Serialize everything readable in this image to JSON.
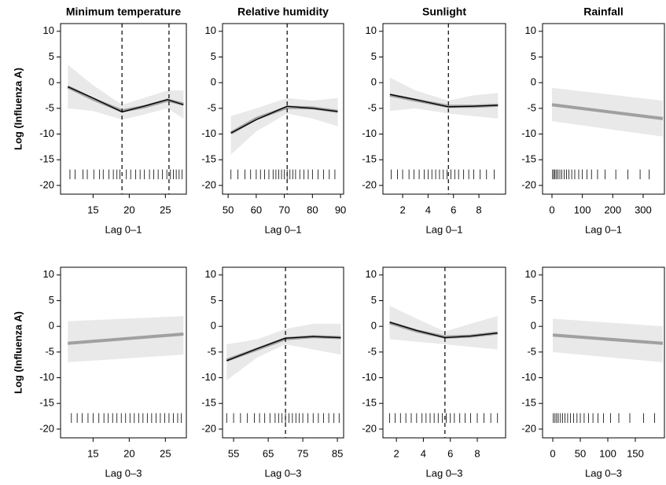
{
  "chart_data": [
    {
      "type": "line",
      "title": "Minimum temperature",
      "xlabel": "Lag 0–1",
      "ylabel": "Log (Influenza A)",
      "xlim": [
        10.5,
        27.9
      ],
      "xticks": [
        15,
        20,
        25
      ],
      "ylim": [
        -21.7,
        11.5
      ],
      "yticks": [
        10,
        5,
        0,
        -5,
        -10,
        -15,
        -20
      ],
      "x": [
        11.5,
        15,
        19,
        22,
        25.3,
        27.5
      ],
      "ci_lower": [
        -5,
        -5.5,
        -7.2,
        -6.2,
        -5,
        -7
      ],
      "ci_upper": [
        3.5,
        -0.5,
        -4.3,
        -3,
        -1.5,
        -1.5
      ],
      "series": [
        {
          "color": "#a0a0a0",
          "values": [
            -0.8,
            -3.2,
            -5.5,
            -4.7,
            -3.4,
            -4.2
          ]
        },
        {
          "color": "#000000",
          "values": [
            -0.8,
            -3,
            -5.7,
            -4.6,
            -3.3,
            -4.3
          ]
        }
      ],
      "cutoffs": [
        19,
        25.5
      ],
      "rug": [
        11.8,
        12.5,
        13.6,
        14.2,
        15.1,
        15.9,
        16.4,
        17.2,
        17.8,
        18.3,
        18.7,
        19.6,
        20.2,
        20.9,
        21.5,
        22.1,
        22.8,
        23.4,
        24.0,
        24.6,
        25.2,
        25.7,
        26.1,
        26.5,
        26.9,
        27.3
      ]
    },
    {
      "type": "line",
      "title": "Relative humidity",
      "xlabel": "Lag 0–1",
      "xlim": [
        48.0,
        91.1
      ],
      "xticks": [
        50,
        60,
        70,
        80,
        90
      ],
      "ylim": [
        -21.7,
        11.5
      ],
      "yticks": [
        10,
        5,
        0,
        -5,
        -10,
        -15,
        -20
      ],
      "x": [
        51,
        60,
        71,
        80,
        89
      ],
      "ci_lower": [
        -14,
        -9.5,
        -6,
        -7,
        -8.5
      ],
      "ci_upper": [
        -6.5,
        -5,
        -3,
        -3.5,
        -3
      ],
      "series": [
        {
          "color": "#a0a0a0",
          "values": [
            -9.8,
            -7.0,
            -4.8,
            -4.9,
            -5.6
          ]
        },
        {
          "color": "#000000",
          "values": [
            -9.8,
            -7.2,
            -4.6,
            -5,
            -5.6
          ]
        }
      ],
      "cutoffs": [
        71
      ],
      "rug": [
        51,
        53.5,
        56,
        58,
        60,
        61.5,
        63,
        64.5,
        66,
        67,
        68,
        69,
        70,
        71,
        72,
        73,
        74,
        75.5,
        77,
        78.5,
        80,
        82,
        84,
        86,
        88
      ]
    },
    {
      "type": "line",
      "title": "Sunlight",
      "xlabel": "Lag 0–1",
      "xlim": [
        0.45,
        10.1
      ],
      "xticks": [
        2,
        4,
        6,
        8
      ],
      "ylim": [
        -21.7,
        11.5
      ],
      "yticks": [
        10,
        5,
        0,
        -5,
        -10,
        -15,
        -20
      ],
      "x": [
        1,
        3,
        5.6,
        7.5,
        9.5
      ],
      "ci_lower": [
        -5.5,
        -5,
        -6,
        -6.5,
        -7
      ],
      "ci_upper": [
        1,
        -1.5,
        -3.5,
        -2.5,
        -2
      ],
      "series": [
        {
          "color": "#a0a0a0",
          "values": [
            -2.4,
            -3.4,
            -4.6,
            -4.6,
            -4.4
          ]
        },
        {
          "color": "#000000",
          "values": [
            -2.3,
            -3.3,
            -4.7,
            -4.6,
            -4.4
          ]
        }
      ],
      "cutoffs": [
        5.6
      ],
      "rug": [
        1.1,
        1.6,
        2.0,
        2.5,
        2.9,
        3.3,
        3.7,
        4.0,
        4.3,
        4.6,
        4.9,
        5.2,
        5.5,
        5.8,
        6.1,
        6.4,
        6.8,
        7.2,
        7.6,
        8.1,
        8.6,
        9.2
      ]
    },
    {
      "type": "line",
      "title": "Rainfall",
      "xlabel": "Lag 0–1",
      "xlim": [
        -31,
        370
      ],
      "xticks": [
        0,
        100,
        200,
        300
      ],
      "ylim": [
        -21.7,
        11.5
      ],
      "yticks": [
        10,
        5,
        0,
        -5,
        -10,
        -15,
        -20
      ],
      "x": [
        0,
        365
      ],
      "ci_lower": [
        -7.5,
        -10.5
      ],
      "ci_upper": [
        -1,
        -3.5
      ],
      "series": [
        {
          "color": "#a0a0a0",
          "values": [
            -4.3,
            -7
          ]
        }
      ],
      "rug": [
        2,
        6,
        10,
        15,
        20,
        26,
        32,
        40,
        48,
        56,
        65,
        75,
        88,
        100,
        115,
        130,
        150,
        175,
        210,
        250,
        290,
        320
      ]
    },
    {
      "type": "line",
      "xlabel": "Lag 0–3",
      "ylabel": "Log (Influenza A)",
      "xlim": [
        10.5,
        27.9
      ],
      "xticks": [
        15,
        20,
        25
      ],
      "ylim": [
        -21.7,
        11.5
      ],
      "yticks": [
        10,
        5,
        0,
        -5,
        -10,
        -15,
        -20
      ],
      "x": [
        11.5,
        27.5
      ],
      "ci_lower": [
        -7,
        -5.5
      ],
      "ci_upper": [
        1,
        2
      ],
      "series": [
        {
          "color": "#a0a0a0",
          "values": [
            -3.3,
            -1.5
          ]
        }
      ],
      "rug": [
        12,
        12.8,
        13.5,
        14.3,
        15.0,
        15.8,
        16.5,
        17.1,
        17.7,
        18.3,
        18.9,
        19.5,
        20.1,
        20.7,
        21.3,
        21.9,
        22.5,
        23.1,
        23.7,
        24.3,
        24.9,
        25.5,
        26.1,
        26.7,
        27.2
      ]
    },
    {
      "type": "line",
      "xlabel": "Lag 0–3",
      "xlim": [
        51.8,
        86.8
      ],
      "xticks": [
        55,
        65,
        75,
        85
      ],
      "ylim": [
        -21.7,
        11.5
      ],
      "yticks": [
        10,
        5,
        0,
        -5,
        -10,
        -15,
        -20
      ],
      "x": [
        53,
        62,
        70,
        78,
        86
      ],
      "ci_lower": [
        -10.5,
        -6,
        -3.5,
        -4.5,
        -5.5
      ],
      "ci_upper": [
        -3.5,
        -2.5,
        -0.5,
        0.5,
        0.5
      ],
      "series": [
        {
          "color": "#a0a0a0",
          "values": [
            -6.6,
            -4.4,
            -2.4,
            -2.0,
            -2.2
          ]
        },
        {
          "color": "#000000",
          "values": [
            -6.7,
            -4.3,
            -2.3,
            -2,
            -2.2
          ]
        }
      ],
      "cutoffs": [
        70
      ],
      "rug": [
        53,
        55,
        57,
        59,
        61,
        62.5,
        64,
        65.5,
        67,
        68,
        69,
        70,
        71,
        72,
        73,
        74,
        75,
        76.5,
        78,
        79.5,
        81,
        82.5,
        84,
        85.5
      ]
    },
    {
      "type": "line",
      "xlabel": "Lag 0–3",
      "xlim": [
        1.0,
        10.1
      ],
      "xticks": [
        2,
        4,
        6,
        8
      ],
      "ylim": [
        -21.7,
        11.5
      ],
      "yticks": [
        10,
        5,
        0,
        -5,
        -10,
        -15,
        -20
      ],
      "x": [
        1.5,
        3.5,
        5.6,
        7.5,
        9.5
      ],
      "ci_lower": [
        -2.5,
        -3,
        -3.5,
        -4,
        -4.5
      ],
      "ci_upper": [
        4,
        1.5,
        -1,
        0.5,
        2
      ],
      "series": [
        {
          "color": "#a0a0a0",
          "values": [
            0.7,
            -0.9,
            -2.1,
            -1.9,
            -1.3
          ]
        },
        {
          "color": "#000000",
          "values": [
            0.8,
            -0.8,
            -2.2,
            -1.9,
            -1.3
          ]
        }
      ],
      "cutoffs": [
        5.6
      ],
      "rug": [
        1.5,
        1.9,
        2.3,
        2.7,
        3.1,
        3.5,
        3.9,
        4.2,
        4.5,
        4.8,
        5.1,
        5.4,
        5.7,
        6.0,
        6.3,
        6.7,
        7.1,
        7.5,
        8.0,
        8.5,
        9.0,
        9.5
      ]
    },
    {
      "type": "line",
      "xlabel": "Lag 0–3",
      "xlim": [
        -18.6,
        202.9
      ],
      "xticks": [
        0,
        50,
        100,
        150
      ],
      "ylim": [
        -21.7,
        11.5
      ],
      "yticks": [
        10,
        5,
        0,
        -5,
        -10,
        -15,
        -20
      ],
      "x": [
        0,
        200
      ],
      "ci_lower": [
        -5,
        -7
      ],
      "ci_upper": [
        1.5,
        0
      ],
      "series": [
        {
          "color": "#a0a0a0",
          "values": [
            -1.7,
            -3.3
          ]
        }
      ],
      "rug": [
        1,
        4,
        7,
        10,
        14,
        18,
        22,
        27,
        32,
        38,
        44,
        50,
        57,
        65,
        73,
        82,
        92,
        105,
        120,
        140,
        165,
        185
      ]
    }
  ]
}
